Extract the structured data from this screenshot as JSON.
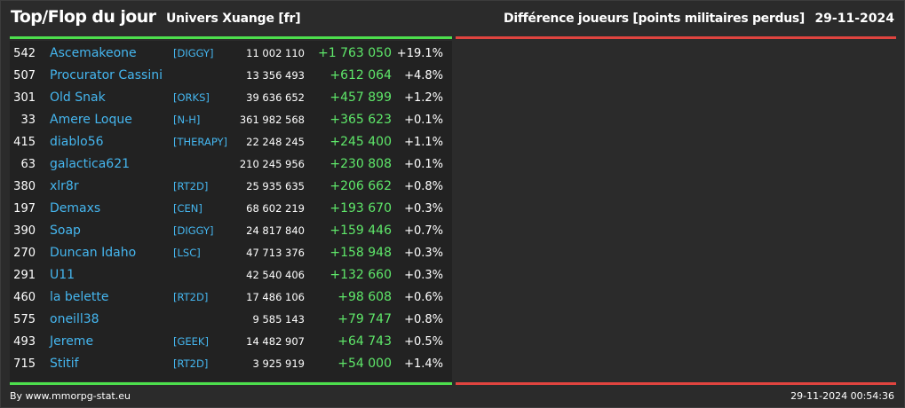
{
  "header": {
    "title": "Top/Flop du jour",
    "universe": "Univers Xuange [fr]",
    "metric": "Différence joueurs [points militaires perdus]",
    "date": "29-11-2024"
  },
  "colors": {
    "top_bar": "#4ddf4d",
    "flop_bar": "#e0443f",
    "player_link": "#45b6ef",
    "gain": "#5fe86a"
  },
  "top_players": [
    {
      "rank": "542",
      "name": "Ascemakeone",
      "alliance": "[DIGGY]",
      "points": "11 002 110",
      "diff": "+1 763 050",
      "pct": "+19.1%"
    },
    {
      "rank": "507",
      "name": "Procurator Cassini",
      "alliance": "",
      "points": "13 356 493",
      "diff": "+612 064",
      "pct": "+4.8%"
    },
    {
      "rank": "301",
      "name": "Old Snak",
      "alliance": "[ORKS]",
      "points": "39 636 652",
      "diff": "+457 899",
      "pct": "+1.2%"
    },
    {
      "rank": "33",
      "name": "Amere Loque",
      "alliance": "[N-H]",
      "points": "361 982 568",
      "diff": "+365 623",
      "pct": "+0.1%"
    },
    {
      "rank": "415",
      "name": "diablo56",
      "alliance": "[THERAPY]",
      "points": "22 248 245",
      "diff": "+245 400",
      "pct": "+1.1%"
    },
    {
      "rank": "63",
      "name": "galactica621",
      "alliance": "",
      "points": "210 245 956",
      "diff": "+230 808",
      "pct": "+0.1%"
    },
    {
      "rank": "380",
      "name": "xlr8r",
      "alliance": "[RT2D]",
      "points": "25 935 635",
      "diff": "+206 662",
      "pct": "+0.8%"
    },
    {
      "rank": "197",
      "name": "Demaxs",
      "alliance": "[CEN]",
      "points": "68 602 219",
      "diff": "+193 670",
      "pct": "+0.3%"
    },
    {
      "rank": "390",
      "name": "Soap",
      "alliance": "[DIGGY]",
      "points": "24 817 840",
      "diff": "+159 446",
      "pct": "+0.7%"
    },
    {
      "rank": "270",
      "name": "Duncan Idaho",
      "alliance": "[LSC]",
      "points": "47 713 376",
      "diff": "+158 948",
      "pct": "+0.3%"
    },
    {
      "rank": "291",
      "name": "U11",
      "alliance": "",
      "points": "42 540 406",
      "diff": "+132 660",
      "pct": "+0.3%"
    },
    {
      "rank": "460",
      "name": "la belette",
      "alliance": "[RT2D]",
      "points": "17 486 106",
      "diff": "+98 608",
      "pct": "+0.6%"
    },
    {
      "rank": "575",
      "name": "oneill38",
      "alliance": "",
      "points": "9 585 143",
      "diff": "+79 747",
      "pct": "+0.8%"
    },
    {
      "rank": "493",
      "name": "Jereme",
      "alliance": "[GEEK]",
      "points": "14 482 907",
      "diff": "+64 743",
      "pct": "+0.5%"
    },
    {
      "rank": "715",
      "name": "Stitif",
      "alliance": "[RT2D]",
      "points": "3 925 919",
      "diff": "+54 000",
      "pct": "+1.4%"
    }
  ],
  "footer": {
    "source": "By www.mmorpg-stat.eu",
    "timestamp": "29-11-2024 00:54:36"
  }
}
